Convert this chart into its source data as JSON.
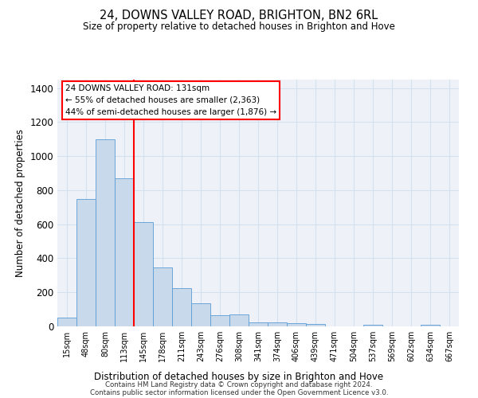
{
  "title": "24, DOWNS VALLEY ROAD, BRIGHTON, BN2 6RL",
  "subtitle": "Size of property relative to detached houses in Brighton and Hove",
  "xlabel": "Distribution of detached houses by size in Brighton and Hove",
  "ylabel": "Number of detached properties",
  "footer_line1": "Contains HM Land Registry data © Crown copyright and database right 2024.",
  "footer_line2": "Contains public sector information licensed under the Open Government Licence v3.0.",
  "categories": [
    "15sqm",
    "48sqm",
    "80sqm",
    "113sqm",
    "145sqm",
    "178sqm",
    "211sqm",
    "243sqm",
    "276sqm",
    "308sqm",
    "341sqm",
    "374sqm",
    "406sqm",
    "439sqm",
    "471sqm",
    "504sqm",
    "537sqm",
    "569sqm",
    "602sqm",
    "634sqm",
    "667sqm"
  ],
  "values": [
    50,
    750,
    1100,
    870,
    615,
    345,
    225,
    135,
    65,
    70,
    25,
    25,
    20,
    12,
    0,
    0,
    10,
    0,
    0,
    10,
    0
  ],
  "bar_color": "#c8d9ec",
  "bar_edge_color": "#5b9bd5",
  "grid_color": "#d4dff0",
  "background_color": "#eef2f8",
  "annotation_box_line1": "24 DOWNS VALLEY ROAD: 131sqm",
  "annotation_box_line2": "← 55% of detached houses are smaller (2,363)",
  "annotation_box_line3": "44% of semi-detached houses are larger (1,876) →",
  "annotation_box_color": "white",
  "annotation_box_edge_color": "red",
  "property_line_x": 3.5,
  "property_line_color": "red",
  "ylim": [
    0,
    1450
  ],
  "yticks": [
    0,
    200,
    400,
    600,
    800,
    1000,
    1200,
    1400
  ]
}
